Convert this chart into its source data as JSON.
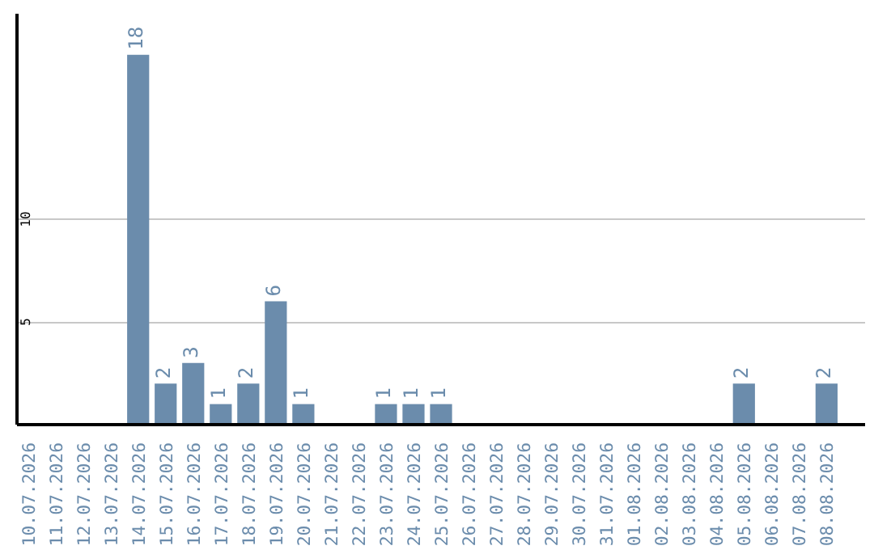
{
  "chart_data": {
    "type": "bar",
    "categories": [
      "10.07.2026",
      "11.07.2026",
      "12.07.2026",
      "13.07.2026",
      "14.07.2026",
      "15.07.2026",
      "16.07.2026",
      "17.07.2026",
      "18.07.2026",
      "19.07.2026",
      "20.07.2026",
      "21.07.2026",
      "22.07.2026",
      "23.07.2026",
      "24.07.2026",
      "25.07.2026",
      "26.07.2026",
      "27.07.2026",
      "28.07.2026",
      "29.07.2026",
      "30.07.2026",
      "31.07.2026",
      "01.08.2026",
      "02.08.2026",
      "03.08.2026",
      "04.08.2026",
      "05.08.2026",
      "06.08.2026",
      "07.08.2026",
      "08.08.2026"
    ],
    "values": [
      0,
      0,
      0,
      0,
      18,
      2,
      3,
      1,
      2,
      6,
      1,
      0,
      0,
      1,
      1,
      1,
      0,
      0,
      0,
      0,
      0,
      0,
      0,
      0,
      0,
      0,
      2,
      0,
      0,
      2
    ],
    "value_labels": [
      null,
      null,
      null,
      null,
      "18",
      "2",
      "3",
      "1",
      "2",
      "6",
      "1",
      null,
      null,
      "1",
      "1",
      "1",
      null,
      null,
      null,
      null,
      null,
      null,
      null,
      null,
      null,
      null,
      "2",
      null,
      null,
      "2"
    ],
    "color": "#6b8cac",
    "ylim": [
      0,
      20
    ],
    "yticks": [
      5,
      10
    ],
    "grid": "y"
  }
}
